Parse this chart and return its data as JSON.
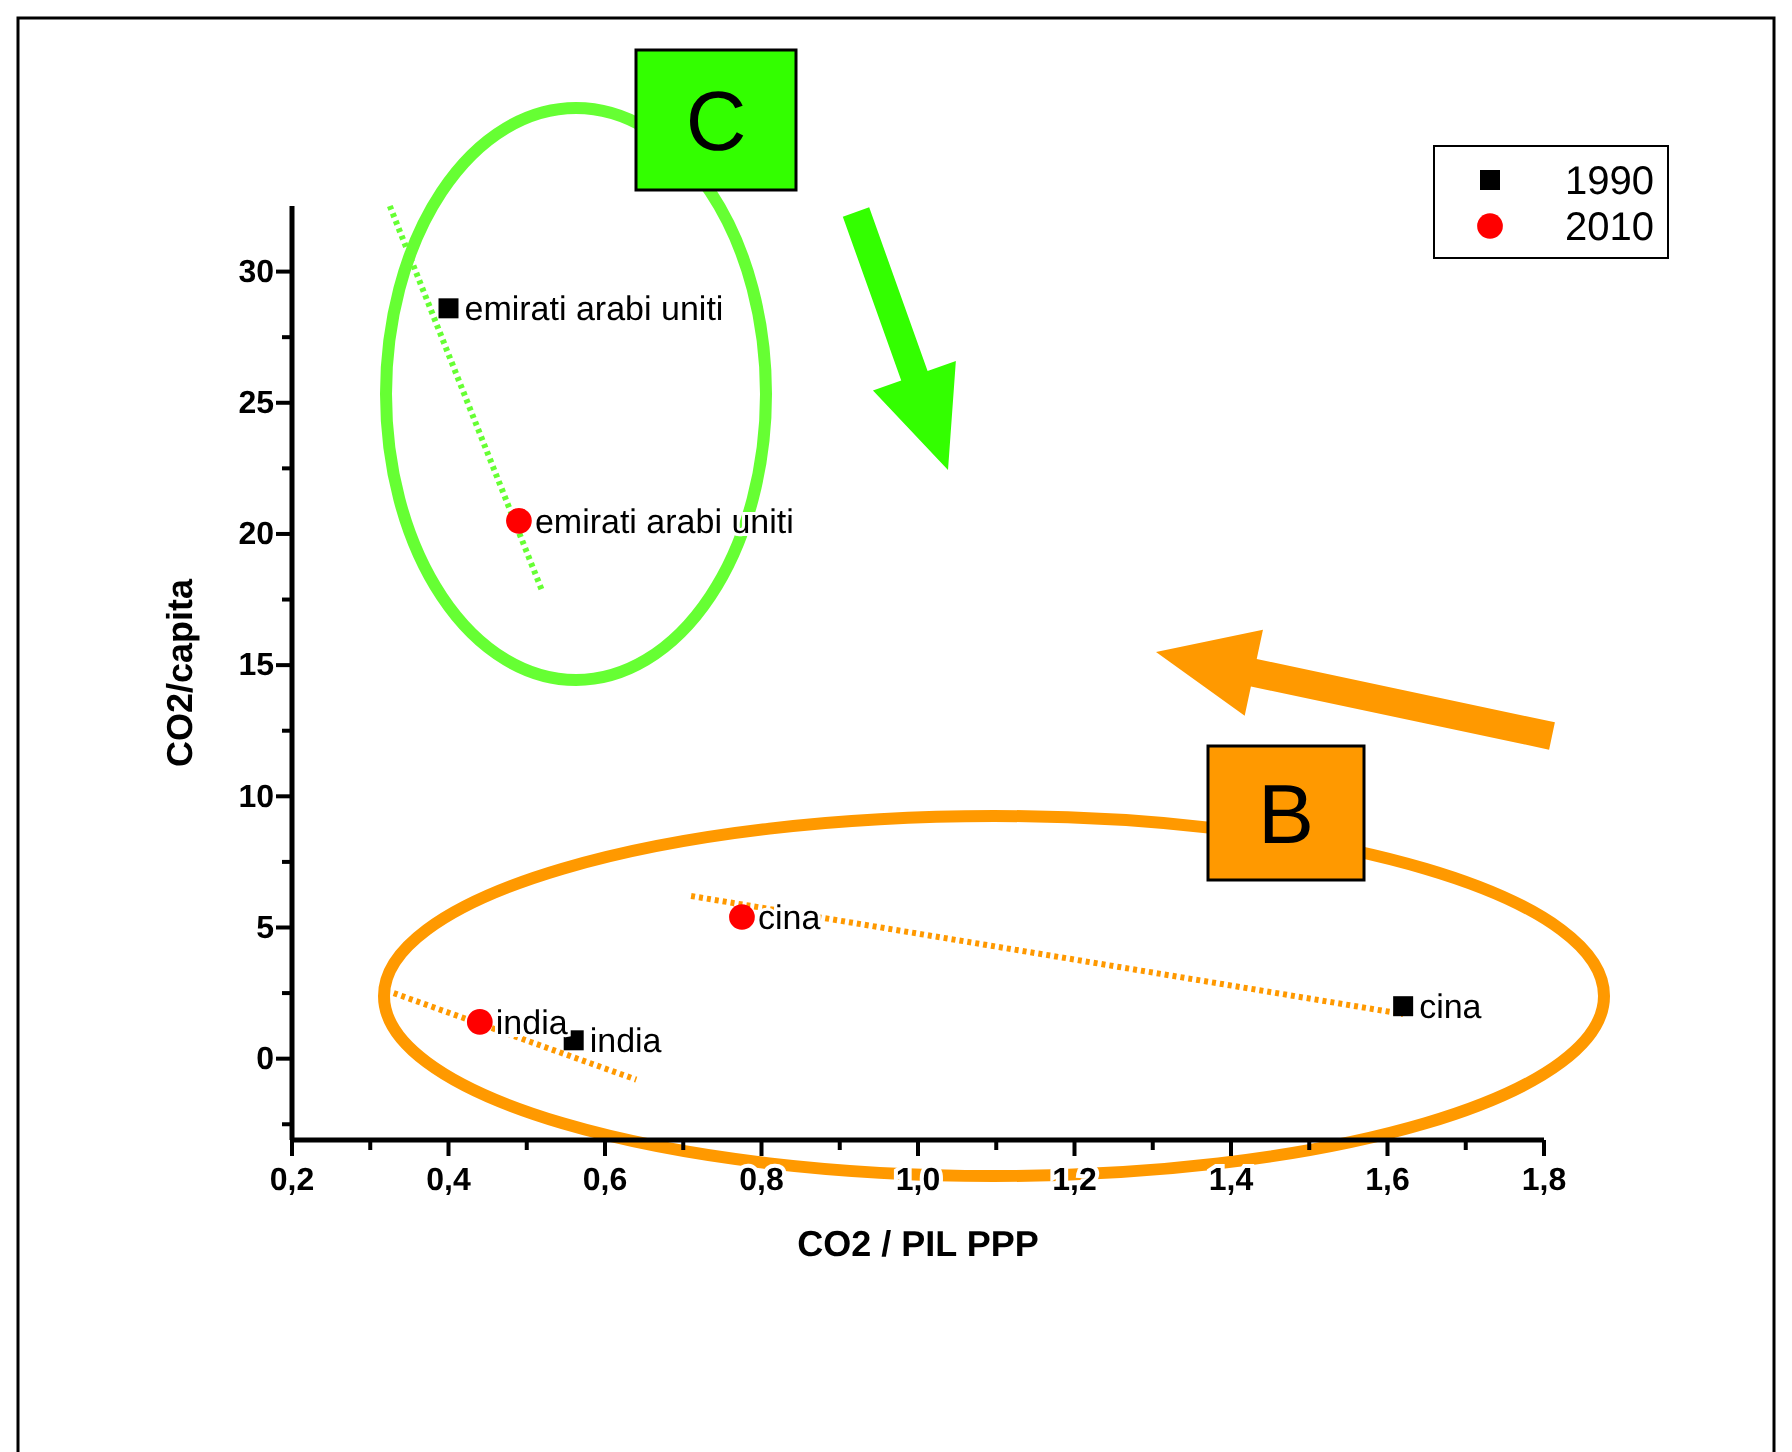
{
  "chart_data": {
    "type": "scatter",
    "xlabel": "CO2 / PIL PPP",
    "ylabel": "CO2/capita",
    "xlim": [
      0.2,
      1.8
    ],
    "ylim": [
      -3.1,
      32.5
    ],
    "xticks": [
      {
        "value": 0.2,
        "label": "0,2"
      },
      {
        "value": 0.3,
        "label": null
      },
      {
        "value": 0.4,
        "label": "0,4"
      },
      {
        "value": 0.5,
        "label": null
      },
      {
        "value": 0.6,
        "label": "0,6"
      },
      {
        "value": 0.7,
        "label": null
      },
      {
        "value": 0.8,
        "label": "0,8"
      },
      {
        "value": 0.9,
        "label": null
      },
      {
        "value": 1.0,
        "label": "1,0"
      },
      {
        "value": 1.1,
        "label": null
      },
      {
        "value": 1.2,
        "label": "1,2"
      },
      {
        "value": 1.3,
        "label": null
      },
      {
        "value": 1.4,
        "label": "1,4"
      },
      {
        "value": 1.5,
        "label": null
      },
      {
        "value": 1.6,
        "label": "1,6"
      },
      {
        "value": 1.7,
        "label": null
      },
      {
        "value": 1.8,
        "label": "1,8"
      }
    ],
    "yticks": [
      {
        "value": -2.5,
        "label": null
      },
      0,
      {
        "value": 2.5,
        "label": null
      },
      5,
      {
        "value": 7.5,
        "label": null
      },
      10,
      {
        "value": 12.5,
        "label": null
      },
      15,
      {
        "value": 17.5,
        "label": null
      },
      20,
      {
        "value": 22.5,
        "label": null
      },
      25,
      {
        "value": 27.5,
        "label": null
      },
      30
    ],
    "grid": false,
    "legend": "top right",
    "series": [
      {
        "type": "line",
        "color": "#66ff33",
        "line_style": "dotted",
        "marker": "none",
        "x": [
          0.325,
          0.52
        ],
        "values": [
          32.5,
          17.8
        ]
      },
      {
        "type": "line",
        "color": "#ff9900",
        "line_style": "dotted",
        "marker": "none",
        "x": [
          0.71,
          1.62
        ],
        "values": [
          6.2,
          1.7
        ]
      },
      {
        "type": "line",
        "color": "#ff9900",
        "line_style": "dotted",
        "marker": "none",
        "x": [
          0.33,
          0.64
        ],
        "values": [
          2.5,
          -0.8
        ]
      },
      {
        "name": "1990",
        "color": "#000000",
        "marker": "square",
        "x": [
          0.4,
          1.62,
          0.56
        ],
        "values": [
          28.6,
          2.0,
          0.7
        ]
      },
      {
        "name": "2010",
        "color": "#ff0000",
        "marker": "circle",
        "x": [
          0.49,
          0.775,
          0.44
        ],
        "values": [
          20.5,
          5.4,
          1.4
        ]
      }
    ],
    "annotations": [
      {
        "text": "emirati arabi uniti",
        "x": 0.4,
        "y": 28.6
      },
      {
        "text": "emirati arabi uniti",
        "x": 0.49,
        "y": 20.5
      },
      {
        "text": "cina",
        "x": 0.775,
        "y": 5.4
      },
      {
        "text": "cina",
        "x": 1.62,
        "y": 2.0
      },
      {
        "text": "india",
        "x": 0.44,
        "y": 1.4
      },
      {
        "text": "india",
        "x": 0.56,
        "y": 0.7
      },
      "C",
      "B"
    ]
  }
}
